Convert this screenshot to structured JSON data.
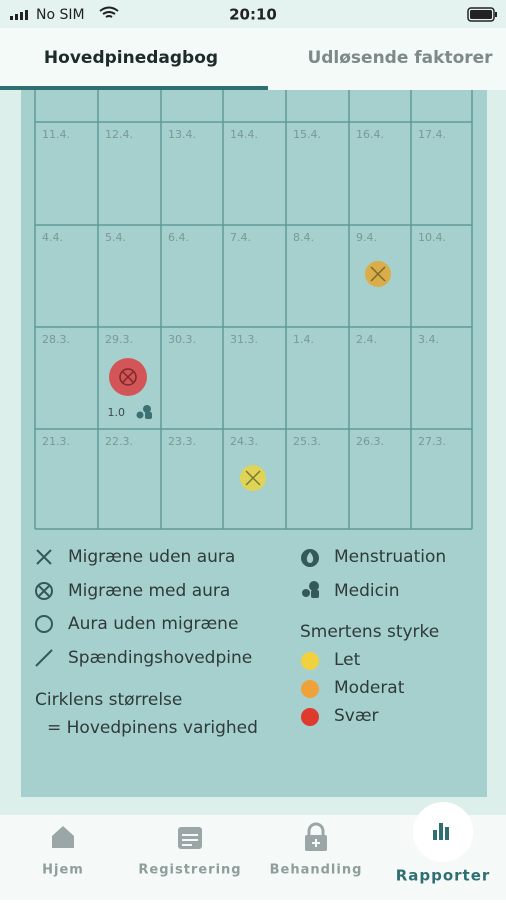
{
  "status_bar": {
    "carrier": "No SIM",
    "time": "20:10"
  },
  "tabs": [
    "Hovedpinedagbog",
    "Udløsende faktorer"
  ],
  "calendar": {
    "rows": [
      [
        "11.4.",
        "12.4.",
        "13.4.",
        "14.4.",
        "15.4.",
        "16.4.",
        "17.4."
      ],
      [
        "4.4.",
        "5.4.",
        "6.4.",
        "7.4.",
        "8.4.",
        "9.4.",
        "10.4."
      ],
      [
        "28.3.",
        "29.3.",
        "30.3.",
        "31.3.",
        "1.4.",
        "2.4.",
        "3.4."
      ],
      [
        "21.3.",
        "22.3.",
        "23.3.",
        "24.3.",
        "25.3.",
        "26.3.",
        "27.3."
      ]
    ],
    "duration_label": "1.0"
  },
  "legend": {
    "types": [
      "Migræne uden aura",
      "Migræne med aura",
      "Aura uden migræne",
      "Spændingshovedpine"
    ],
    "extras": [
      "Menstruation",
      "Medicin"
    ],
    "intensity_title": "Smertens styrke",
    "intensity": [
      "Let",
      "Moderat",
      "Svær"
    ],
    "size_title": "Cirklens størrelse",
    "size_text": "= Hovedpinens varighed"
  },
  "nav": [
    "Hjem",
    "Registrering",
    "Behandling",
    "Rapporter"
  ]
}
